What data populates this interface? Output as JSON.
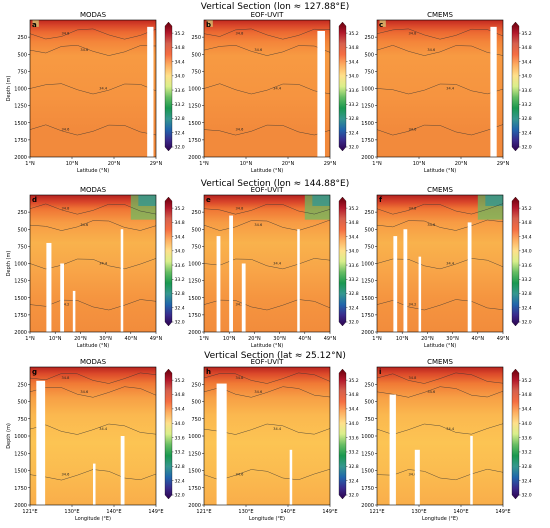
{
  "figure": {
    "rows": [
      {
        "title": "Vertical Section (lon ≈ 127.88°E)"
      },
      {
        "title": "Vertical Section (lon ≈ 144.88°E)"
      },
      {
        "title": "Vertical Section (lat ≈ 25.12°N)"
      }
    ]
  },
  "colorbar": {
    "ticks": [
      "35.2",
      "34.8",
      "34.4",
      "34.0",
      "33.6",
      "33.2",
      "32.8",
      "32.4",
      "32.0"
    ],
    "colors": [
      "#67000d",
      "#b2182b",
      "#d6604d",
      "#f46d43",
      "#fdae61",
      "#fee08b",
      "#d9ef8b",
      "#66bd63",
      "#1a9850",
      "#35978f",
      "#2166ac",
      "#3a2a8c",
      "#2d004b"
    ]
  },
  "chart_data": [
    {
      "type": "heatmap",
      "panel": "a",
      "title": "MODAS",
      "xlabel": "Latitude (°N)",
      "ylabel": "Depth (m)",
      "xticks": [
        "1°N",
        "10°N",
        "20°N",
        "29°N"
      ],
      "yticks": [
        "250",
        "500",
        "750",
        "1000",
        "1250",
        "1500",
        "1750",
        "2000"
      ],
      "ylim": [
        2000,
        0
      ],
      "clim": [
        32.0,
        35.4
      ],
      "contour_labels": [
        "34.8",
        "34.6",
        "34.4",
        "34.6"
      ]
    },
    {
      "type": "heatmap",
      "panel": "b",
      "title": "EOF-UVIT",
      "xlabel": "Latitude (°N)",
      "ylabel": "",
      "xticks": [
        "1°N",
        "10°N",
        "20°N",
        "29°N"
      ],
      "yticks": [
        "250",
        "500",
        "750",
        "1000",
        "1250",
        "1500",
        "1750",
        "2000"
      ],
      "ylim": [
        2000,
        0
      ],
      "clim": [
        32.0,
        35.4
      ],
      "contour_labels": [
        "34.8",
        "34.6",
        "34.4",
        "34.6"
      ]
    },
    {
      "type": "heatmap",
      "panel": "c",
      "title": "CMEMS",
      "xlabel": "Latitude (°N)",
      "ylabel": "",
      "xticks": [
        "1°N",
        "10°N",
        "20°N",
        "29°N"
      ],
      "yticks": [
        "250",
        "500",
        "750",
        "1000",
        "1250",
        "1500",
        "1750",
        "2000"
      ],
      "ylim": [
        2000,
        0
      ],
      "clim": [
        32.0,
        35.4
      ],
      "contour_labels": [
        "34.8",
        "34.6",
        "34.4",
        "34.6"
      ]
    },
    {
      "type": "heatmap",
      "panel": "d",
      "title": "MODAS",
      "xlabel": "Latitude (°N)",
      "ylabel": "Depth (m)",
      "xticks": [
        "1°N",
        "10°N",
        "20°N",
        "30°N",
        "40°N",
        "49°N"
      ],
      "yticks": [
        "250",
        "500",
        "750",
        "1000",
        "1250",
        "1500",
        "1750",
        "2000"
      ],
      "ylim": [
        2000,
        0
      ],
      "clim": [
        32.0,
        35.4
      ],
      "contour_labels": [
        "34.8",
        "34.6",
        "34.4",
        "34.2"
      ]
    },
    {
      "type": "heatmap",
      "panel": "e",
      "title": "EOF-UVIT",
      "xlabel": "Latitude (°N)",
      "ylabel": "",
      "xticks": [
        "1°N",
        "10°N",
        "20°N",
        "30°N",
        "40°N",
        "49°N"
      ],
      "yticks": [
        "250",
        "500",
        "750",
        "1000",
        "1250",
        "1500",
        "1750",
        "2000"
      ],
      "ylim": [
        2000,
        0
      ],
      "clim": [
        32.0,
        35.4
      ],
      "contour_labels": [
        "34.8",
        "34.6",
        "34.4",
        "34.2"
      ]
    },
    {
      "type": "heatmap",
      "panel": "f",
      "title": "CMEMS",
      "xlabel": "Latitude (°N)",
      "ylabel": "",
      "xticks": [
        "1°N",
        "10°N",
        "20°N",
        "30°N",
        "40°N",
        "49°N"
      ],
      "yticks": [
        "250",
        "500",
        "750",
        "1000",
        "1250",
        "1500",
        "1750",
        "2000"
      ],
      "ylim": [
        2000,
        0
      ],
      "clim": [
        32.0,
        35.4
      ],
      "contour_labels": [
        "34.8",
        "34.6",
        "34.4",
        "34.2"
      ]
    },
    {
      "type": "heatmap",
      "panel": "g",
      "title": "MODAS",
      "xlabel": "Longitude (°E)",
      "ylabel": "Depth (m)",
      "xticks": [
        "121°E",
        "130°E",
        "140°E",
        "149°E"
      ],
      "yticks": [
        "250",
        "500",
        "750",
        "1000",
        "1250",
        "1500",
        "1750",
        "2000"
      ],
      "ylim": [
        2000,
        0
      ],
      "clim": [
        32.0,
        35.4
      ],
      "contour_labels": [
        "34.8",
        "34.6",
        "34.4",
        "34.6"
      ]
    },
    {
      "type": "heatmap",
      "panel": "h",
      "title": "EOF-UVIT",
      "xlabel": "Longitude (°E)",
      "ylabel": "",
      "xticks": [
        "121°E",
        "130°E",
        "140°E",
        "149°E"
      ],
      "yticks": [
        "250",
        "500",
        "750",
        "1000",
        "1250",
        "1500",
        "1750",
        "2000"
      ],
      "ylim": [
        2000,
        0
      ],
      "clim": [
        32.0,
        35.4
      ],
      "contour_labels": [
        "34.8",
        "34.6",
        "34.4",
        "34.6"
      ]
    },
    {
      "type": "heatmap",
      "panel": "i",
      "title": "CMEMS",
      "xlabel": "Longitude (°E)",
      "ylabel": "",
      "xticks": [
        "121°E",
        "130°E",
        "140°E",
        "149°E"
      ],
      "yticks": [
        "250",
        "500",
        "750",
        "1000",
        "1250",
        "1500",
        "1750",
        "2000"
      ],
      "ylim": [
        2000,
        0
      ],
      "clim": [
        32.0,
        35.4
      ],
      "contour_labels": [
        "34.8",
        "34.6",
        "34.4",
        "34.6"
      ]
    }
  ]
}
